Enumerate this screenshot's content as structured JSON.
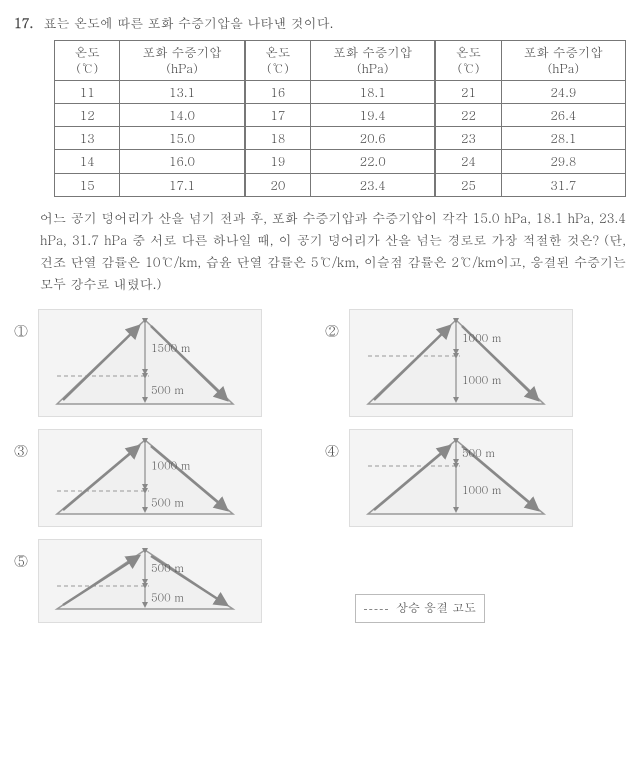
{
  "question": {
    "number": "17.",
    "title": "표는 온도에 따른 포화 수증기압을 나타낸 것이다."
  },
  "table": {
    "head_temp": "온도\n(℃)",
    "head_vp": "포화 수증기압\n(hPa)",
    "rows": [
      {
        "t1": "11",
        "v1": "13.1",
        "t2": "16",
        "v2": "18.1",
        "t3": "21",
        "v3": "24.9"
      },
      {
        "t1": "12",
        "v1": "14.0",
        "t2": "17",
        "v2": "19.4",
        "t3": "22",
        "v3": "26.4"
      },
      {
        "t1": "13",
        "v1": "15.0",
        "t2": "18",
        "v2": "20.6",
        "t3": "23",
        "v3": "28.1"
      },
      {
        "t1": "14",
        "v1": "16.0",
        "t2": "19",
        "v2": "22.0",
        "t3": "24",
        "v3": "29.8"
      },
      {
        "t1": "15",
        "v1": "17.1",
        "t2": "20",
        "v2": "23.4",
        "t3": "25",
        "v3": "31.7"
      }
    ]
  },
  "paragraph": "어느 공기 덩어리가 산을 넘기 전과 후, 포화 수증기압과 수증기압이 각각 15.0 hPa, 18.1 hPa, 23.4 hPa, 31.7 hPa 중 서로 다른 하나일 때, 이 공기 덩어리가 산을 넘는 경로로 가장 적절한 것은? (단, 건조 단열 감률은 10℃/km, 습윤 단열 감률은 5℃/km, 이슬점 감률은 2℃/km이고, 응결된 수증기는 모두 강수로 내렸다.)",
  "choices": {
    "c1": "①",
    "c2": "②",
    "c3": "③",
    "c4": "④",
    "c5": "⑤"
  },
  "mountains": {
    "m1": {
      "top": "1500 m",
      "bottom": "500 m",
      "lineY": 60
    },
    "m2": {
      "top": "1000 m",
      "bottom": "1000 m",
      "lineY": 40
    },
    "m3": {
      "top": "1000 m",
      "bottom": "500 m",
      "lineY": 55
    },
    "m4": {
      "top": "500 m",
      "bottom": "1000 m",
      "lineY": 30
    },
    "m5": {
      "top": "500 m",
      "bottom": "500 m",
      "lineY": 40
    }
  },
  "legend": "상승 응결 고도",
  "style": {
    "mountain_fill": "#f0f0f0",
    "mountain_stroke": "#999",
    "arrow_stroke": "#888",
    "dash_color": "#999"
  }
}
